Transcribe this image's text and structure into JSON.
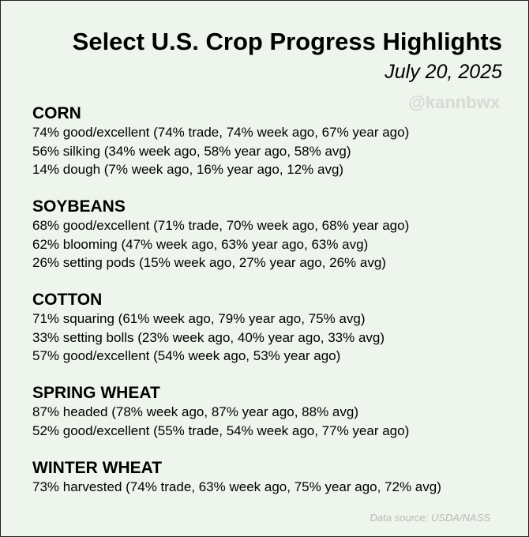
{
  "header": {
    "title": "Select U.S. Crop Progress Highlights",
    "date": "July 20, 2025",
    "handle": "@kannbwx"
  },
  "sections": [
    {
      "name": "CORN",
      "lines": [
        "74% good/excellent (74% trade, 74% week ago, 67% year ago)",
        "56% silking (34% week ago, 58% year ago, 58% avg)",
        "14% dough (7% week ago, 16% year ago, 12% avg)"
      ]
    },
    {
      "name": "SOYBEANS",
      "lines": [
        "68% good/excellent (71% trade, 70% week ago, 68% year ago)",
        "62% blooming (47% week ago, 63% year ago, 63% avg)",
        "26% setting pods (15% week ago, 27% year ago, 26% avg)"
      ]
    },
    {
      "name": "COTTON",
      "lines": [
        "71% squaring (61% week ago, 79% year ago, 75% avg)",
        "33% setting bolls (23% week ago, 40% year ago, 33% avg)",
        "57% good/excellent (54% week ago, 53% year ago)"
      ]
    },
    {
      "name": "SPRING WHEAT",
      "lines": [
        "87% headed (78% week ago, 87% year ago, 88% avg)",
        "52% good/excellent (55% trade, 54% week ago, 77% year ago)"
      ]
    },
    {
      "name": "WINTER WHEAT",
      "lines": [
        "73% harvested (74% trade, 63% week ago, 75% year ago, 72% avg)"
      ]
    }
  ],
  "footer": {
    "source": "Data source: USDA/NASS"
  },
  "colors": {
    "background": "#eef5ec",
    "border": "#222222",
    "watermark": "#d6dbd4",
    "source_text": "#b7bcb5"
  }
}
